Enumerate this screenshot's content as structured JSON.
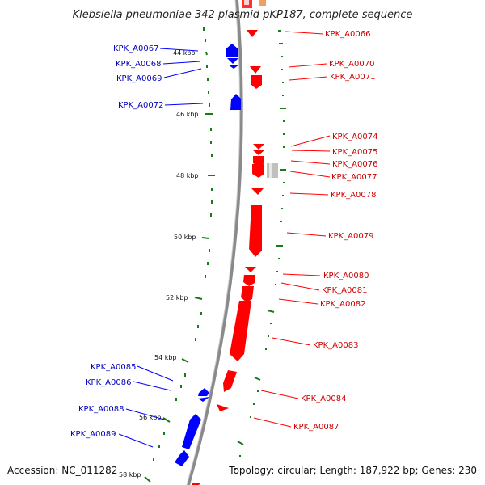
{
  "title": "Klebsiella pneumoniae 342 plasmid pKP187, complete sequence",
  "footer": {
    "accession": "Accession: NC_011282",
    "topology": "Topology: circular; Length: 187,922 bp; Genes: 230"
  },
  "colors": {
    "forward": "#ff0000",
    "reverse": "#0000ff",
    "backbone": "#8a8a8a",
    "ticks": "#1a7a1a",
    "label_forward": "#cc0000",
    "label_reverse": "#0000bb"
  },
  "scale_labels": [
    "44 kbp",
    "46 kbp",
    "48 kbp",
    "50 kbp",
    "52 kbp",
    "54 kbp",
    "56 kbp",
    "58 kbp"
  ],
  "genes_forward": [
    "KPK_A0066",
    "KPK_A0070",
    "KPK_A0071",
    "KPK_A0074",
    "KPK_A0075",
    "KPK_A0076",
    "KPK_A0077",
    "KPK_A0078",
    "KPK_A0079",
    "KPK_A0080",
    "KPK_A0081",
    "KPK_A0082",
    "KPK_A0083",
    "KPK_A0084",
    "KPK_A0087"
  ],
  "genes_reverse": [
    "KPK_A0067",
    "KPK_A0068",
    "KPK_A0069",
    "KPK_A0072",
    "KPK_A0085",
    "KPK_A0086",
    "KPK_A0088",
    "KPK_A0089"
  ]
}
